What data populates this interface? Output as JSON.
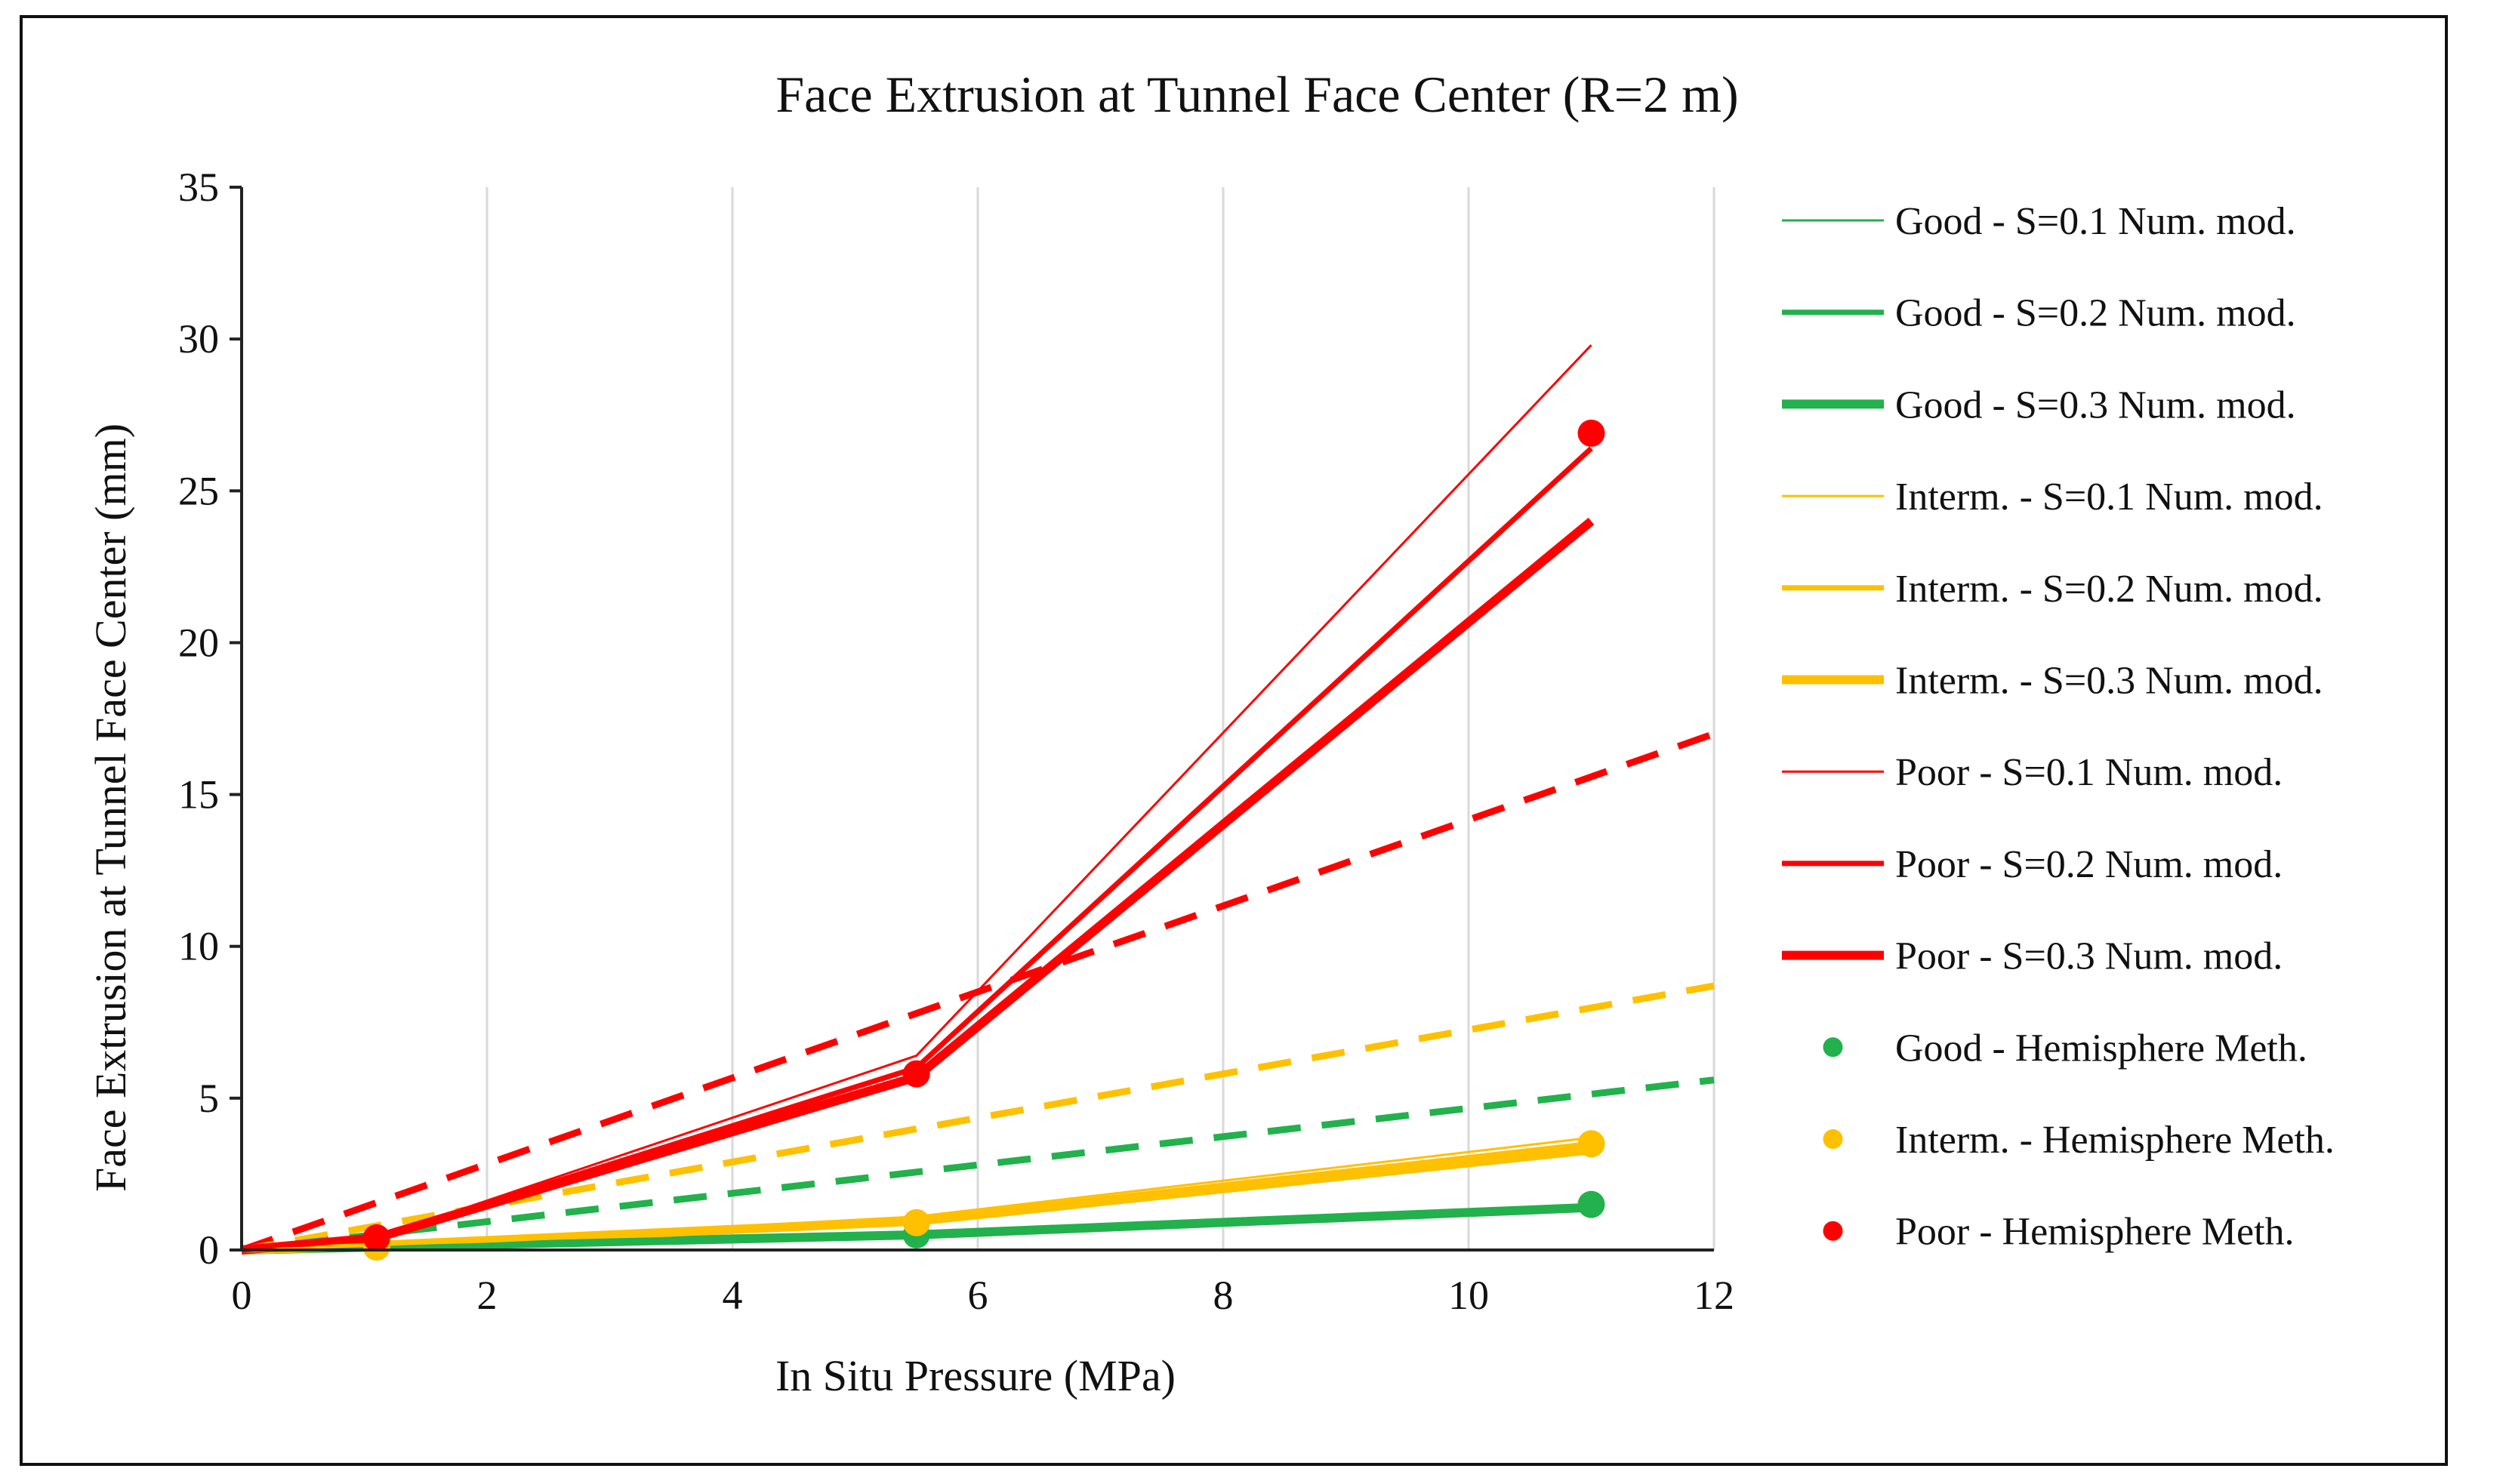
{
  "chart_data": {
    "type": "line",
    "title": "Face Extrusion at Tunnel Face Center (R=2 m)",
    "xlabel": "In Situ Pressure (MPa)",
    "ylabel": "Face Extrusion at Tunnel Face Center (mm)",
    "xlim": [
      0,
      12
    ],
    "ylim": [
      0,
      35
    ],
    "xticks": [
      0,
      2,
      4,
      6,
      8,
      10,
      12
    ],
    "yticks": [
      0,
      5,
      10,
      15,
      20,
      25,
      30,
      35
    ],
    "grid": "vertical",
    "legend_position": "right",
    "colors": {
      "good": "#22b14c",
      "interm": "#ffc000",
      "poor": "#ff0000"
    },
    "series": [
      {
        "name": "Good - S=0.1 Num. mod.",
        "kind": "line",
        "width": "thin",
        "color": "#22b14c",
        "x": [
          0,
          1.1,
          5.5,
          11
        ],
        "y": [
          0,
          0.1,
          0.6,
          1.5
        ]
      },
      {
        "name": "Good - S=0.2 Num. mod.",
        "kind": "line",
        "width": "medium",
        "color": "#22b14c",
        "x": [
          0,
          1.1,
          5.5,
          11
        ],
        "y": [
          0,
          0.1,
          0.55,
          1.45
        ]
      },
      {
        "name": "Good - S=0.3 Num. mod.",
        "kind": "line",
        "width": "thick",
        "color": "#22b14c",
        "x": [
          0,
          1.1,
          5.5,
          11
        ],
        "y": [
          0,
          0.1,
          0.5,
          1.4
        ]
      },
      {
        "name": "Interm.  - S=0.1 Num. mod.",
        "kind": "line",
        "width": "thin",
        "color": "#ffc000",
        "x": [
          0,
          1.1,
          5.5,
          11
        ],
        "y": [
          0,
          0.15,
          1.1,
          3.7
        ]
      },
      {
        "name": "Interm.  - S=0.2 Num. mod.",
        "kind": "line",
        "width": "medium",
        "color": "#ffc000",
        "x": [
          0,
          1.1,
          5.5,
          11
        ],
        "y": [
          0,
          0.15,
          1.0,
          3.5
        ]
      },
      {
        "name": "Interm.  - S=0.3 Num. mod.",
        "kind": "line",
        "width": "thick",
        "color": "#ffc000",
        "x": [
          0,
          1.1,
          5.5,
          11
        ],
        "y": [
          0,
          0.15,
          0.95,
          3.3
        ]
      },
      {
        "name": "Poor - S=0.1 Num. mod.",
        "kind": "line",
        "width": "thin",
        "color": "#ff0000",
        "x": [
          0,
          1.1,
          5.5,
          11
        ],
        "y": [
          0,
          0.4,
          6.4,
          29.8
        ]
      },
      {
        "name": "Poor - S=0.2 Num. mod.",
        "kind": "line",
        "width": "medium",
        "color": "#ff0000",
        "x": [
          0,
          1.1,
          5.5,
          11
        ],
        "y": [
          0,
          0.4,
          6.0,
          26.4
        ]
      },
      {
        "name": "Poor - S=0.3 Num. mod.",
        "kind": "line",
        "width": "thick",
        "color": "#ff0000",
        "x": [
          0,
          1.1,
          5.5,
          11
        ],
        "y": [
          0,
          0.4,
          5.7,
          24.0
        ]
      },
      {
        "name": "Good - Hemisphere Meth.",
        "kind": "points",
        "color": "#22b14c",
        "x": [
          1.1,
          5.5,
          11
        ],
        "y": [
          0.1,
          0.5,
          1.5
        ]
      },
      {
        "name": "Interm.  - Hemisphere Meth.",
        "kind": "points",
        "color": "#ffc000",
        "x": [
          1.1,
          5.5,
          11
        ],
        "y": [
          0.1,
          0.9,
          3.5
        ]
      },
      {
        "name": "Poor - Hemisphere Meth.",
        "kind": "points",
        "color": "#ff0000",
        "x": [
          1.1,
          5.5,
          11
        ],
        "y": [
          0.4,
          5.8,
          26.9
        ]
      }
    ],
    "trendlines": [
      {
        "color": "#ff0000",
        "x": [
          0,
          12
        ],
        "y": [
          0,
          17.0
        ]
      },
      {
        "color": "#ffc000",
        "x": [
          0,
          12
        ],
        "y": [
          0,
          8.7
        ]
      },
      {
        "color": "#22b14c",
        "x": [
          0,
          12
        ],
        "y": [
          0,
          5.6
        ]
      }
    ]
  }
}
